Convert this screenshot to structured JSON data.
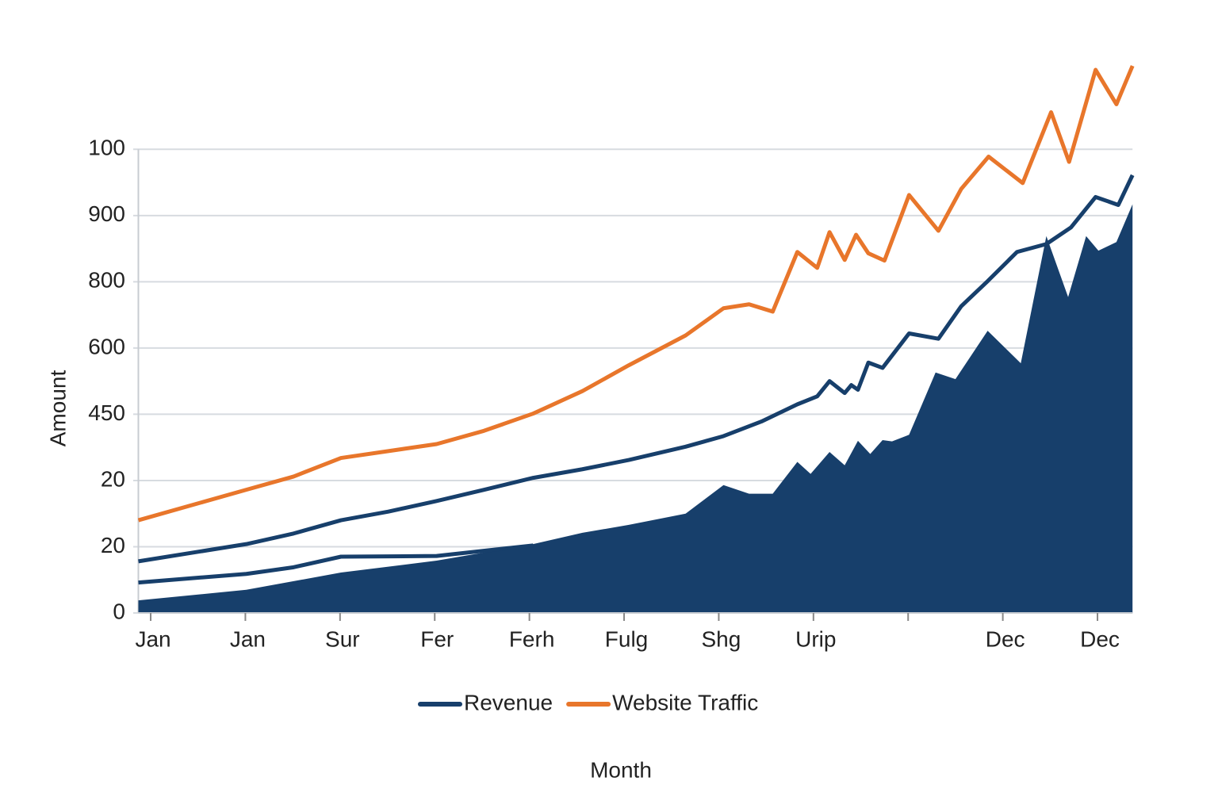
{
  "chart_data": {
    "type": "line",
    "y_label": "Amount",
    "x_label": "Month",
    "xlim": [
      -0.13,
      10.37
    ],
    "xticks": [
      {
        "value": 0,
        "label": "Jan"
      },
      {
        "value": 1,
        "label": "Jan"
      },
      {
        "value": 2,
        "label": "Sur"
      },
      {
        "value": 3,
        "label": "Fer"
      },
      {
        "value": 4,
        "label": "Ferh"
      },
      {
        "value": 5,
        "label": "Fulg"
      },
      {
        "value": 6,
        "label": "Shg"
      },
      {
        "value": 7,
        "label": "Urip"
      },
      {
        "value": 8,
        "label": null
      },
      {
        "value": 9,
        "label": "Dec"
      },
      {
        "value": 10,
        "label": "Dec"
      }
    ],
    "ylim": [
      0,
      850
    ],
    "yticks": [
      0,
      {
        "value": 100,
        "label": "20"
      },
      {
        "value": 200,
        "label": "20"
      },
      {
        "value": 300,
        "label": "450"
      },
      {
        "value": 400,
        "label": "600"
      },
      {
        "value": 500,
        "label": "800"
      },
      {
        "value": 600,
        "label": "900"
      },
      {
        "value": 700,
        "label": "100"
      }
    ],
    "grid": true,
    "legend": "bottom",
    "series": [
      {
        "name": "Revenue",
        "color": "#173f6b",
        "kind": "line",
        "x": [
          -0.13,
          1.01,
          1.51,
          2.01,
          2.51,
          3.02,
          3.52,
          4.04,
          4.56,
          5.05,
          5.65,
          6.05,
          6.45,
          6.83,
          7.04,
          7.17,
          7.33,
          7.4,
          7.47,
          7.58,
          7.73,
          8.01,
          8.32,
          8.56,
          8.84,
          9.15,
          9.46,
          9.72,
          9.98,
          10.22,
          10.37
        ],
        "values": [
          78,
          104,
          120,
          140,
          153,
          169,
          186,
          204,
          217,
          231,
          251,
          267,
          289,
          315,
          327,
          350,
          332,
          344,
          337,
          378,
          370,
          422,
          414,
          463,
          501,
          545,
          557,
          582,
          628,
          616,
          661
        ]
      },
      {
        "name": "Website Traffic",
        "color": "#e8762b",
        "kind": "line",
        "x": [
          -0.13,
          1.01,
          1.51,
          2.01,
          3.02,
          3.52,
          4.04,
          4.56,
          5.05,
          5.65,
          6.05,
          6.32,
          6.57,
          6.83,
          7.04,
          7.17,
          7.33,
          7.45,
          7.58,
          7.75,
          8.01,
          8.32,
          8.56,
          8.85,
          9.21,
          9.51,
          9.7,
          9.98,
          10.2,
          10.37
        ],
        "values": [
          140,
          186,
          206,
          234,
          255,
          275,
          301,
          335,
          374,
          419,
          460,
          466,
          455,
          545,
          521,
          575,
          533,
          571,
          543,
          532,
          631,
          577,
          640,
          689,
          649,
          756,
          681,
          820,
          768,
          826
        ]
      },
      {
        "color": "#173f6b",
        "kind": "line",
        "x": [
          -0.13,
          1.01,
          1.51,
          2.01,
          3.02,
          4.04
        ],
        "values": [
          46,
          59,
          69,
          85,
          86,
          102
        ]
      },
      {
        "color": "#173f6b",
        "kind": "area",
        "x": [
          -0.13,
          1.01,
          2.01,
          3.02,
          4.04,
          4.56,
          5.05,
          5.65,
          6.05,
          6.32,
          6.57,
          6.83,
          6.97,
          7.17,
          7.33,
          7.47,
          7.6,
          7.73,
          7.83,
          8.01,
          8.29,
          8.5,
          8.84,
          9.19,
          9.46,
          9.69,
          9.88,
          10.01,
          10.2,
          10.37
        ],
        "values": [
          19,
          35,
          61,
          79,
          104,
          121,
          133,
          150,
          193,
          180,
          180,
          228,
          210,
          243,
          223,
          260,
          240,
          261,
          259,
          269,
          363,
          353,
          426,
          377,
          569,
          477,
          569,
          547,
          560,
          617
        ]
      }
    ]
  }
}
